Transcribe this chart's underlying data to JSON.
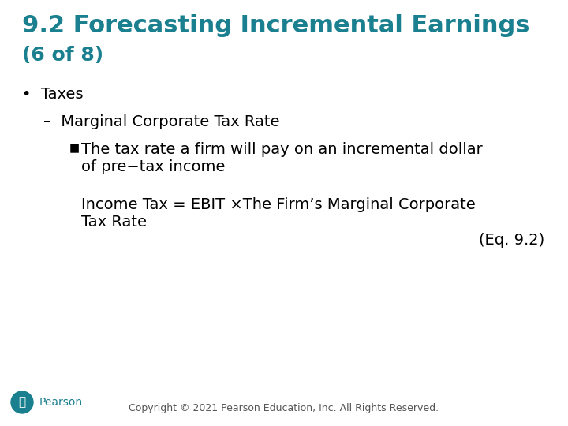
{
  "title_line1": "9.2 Forecasting Incremental Earnings",
  "title_line2": "(6 of 8)",
  "title_color": "#1a7f8e",
  "body_color": "#000000",
  "background_color": "#ffffff",
  "bullet1": "Taxes",
  "sub_bullet1": "Marginal Corporate Tax Rate",
  "sub_sub_bullet1_line1": "The tax rate a firm will pay on an incremental dollar",
  "sub_sub_bullet1_line2": "of pre−tax income",
  "equation_line1": "Income Tax = EBIT ×The Firm’s Marginal Corporate",
  "equation_line2": "Tax Rate",
  "eq_ref": "(Eq. 9.2)",
  "copyright": "Copyright © 2021 Pearson Education, Inc. All Rights Reserved.",
  "title_fontsize": 22,
  "subtitle_fontsize": 18,
  "body_fontsize": 14,
  "small_fontsize": 9,
  "teal_color": "#1a7f8e"
}
